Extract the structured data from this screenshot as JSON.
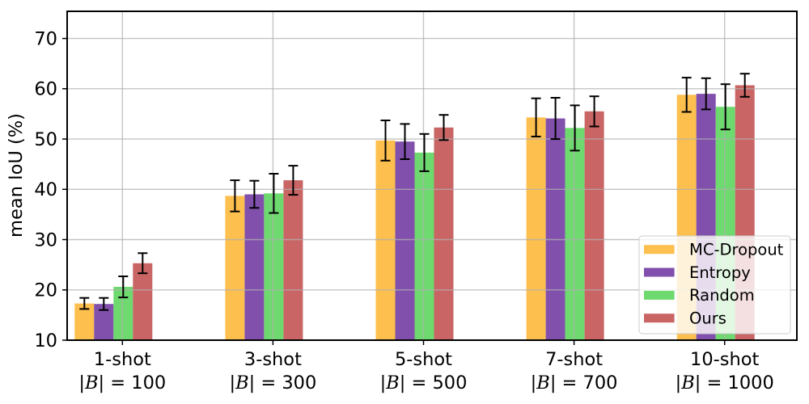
{
  "chart_data": {
    "type": "bar",
    "title": "",
    "xlabel": "",
    "ylabel": "mean IoU (%)",
    "ylim": [
      10,
      75.4
    ],
    "yticks": [
      10,
      20,
      30,
      40,
      50,
      60,
      70
    ],
    "grid": true,
    "grid_color": "#b0b0b0",
    "axis_color": "#000000",
    "error_bar_color": "#000000",
    "legend_position": "lower right",
    "categories": [
      "1-shot",
      "3-shot",
      "5-shot",
      "7-shot",
      "10-shot"
    ],
    "category_sublabels": [
      {
        "p0": "|",
        "b": "B",
        "p1": "| = 100"
      },
      {
        "p0": "|",
        "b": "B",
        "p1": "| = 300"
      },
      {
        "p0": "|",
        "b": "B",
        "p1": "| = 500"
      },
      {
        "p0": "|",
        "b": "B",
        "p1": "| = 700"
      },
      {
        "p0": "|",
        "b": "B",
        "p1": "| = 1000"
      }
    ],
    "series": [
      {
        "name": "MC-Dropout",
        "color": "#fdbf4e",
        "values": [
          17.3,
          38.7,
          49.7,
          54.3,
          58.8
        ],
        "errors": [
          1.1,
          3.1,
          4.0,
          3.8,
          3.4
        ]
      },
      {
        "name": "Entropy",
        "color": "#8150ac",
        "values": [
          17.2,
          39.0,
          49.5,
          54.1,
          59.0
        ],
        "errors": [
          1.2,
          2.7,
          3.5,
          4.1,
          3.1
        ]
      },
      {
        "name": "Random",
        "color": "#6ed96e",
        "values": [
          20.6,
          39.2,
          47.3,
          52.2,
          56.4
        ],
        "errors": [
          2.1,
          3.9,
          3.7,
          4.5,
          4.5
        ]
      },
      {
        "name": "Ours",
        "color": "#c96565",
        "values": [
          25.3,
          41.8,
          52.3,
          55.5,
          60.7
        ],
        "errors": [
          2.0,
          2.9,
          2.5,
          3.0,
          2.3
        ]
      }
    ]
  }
}
